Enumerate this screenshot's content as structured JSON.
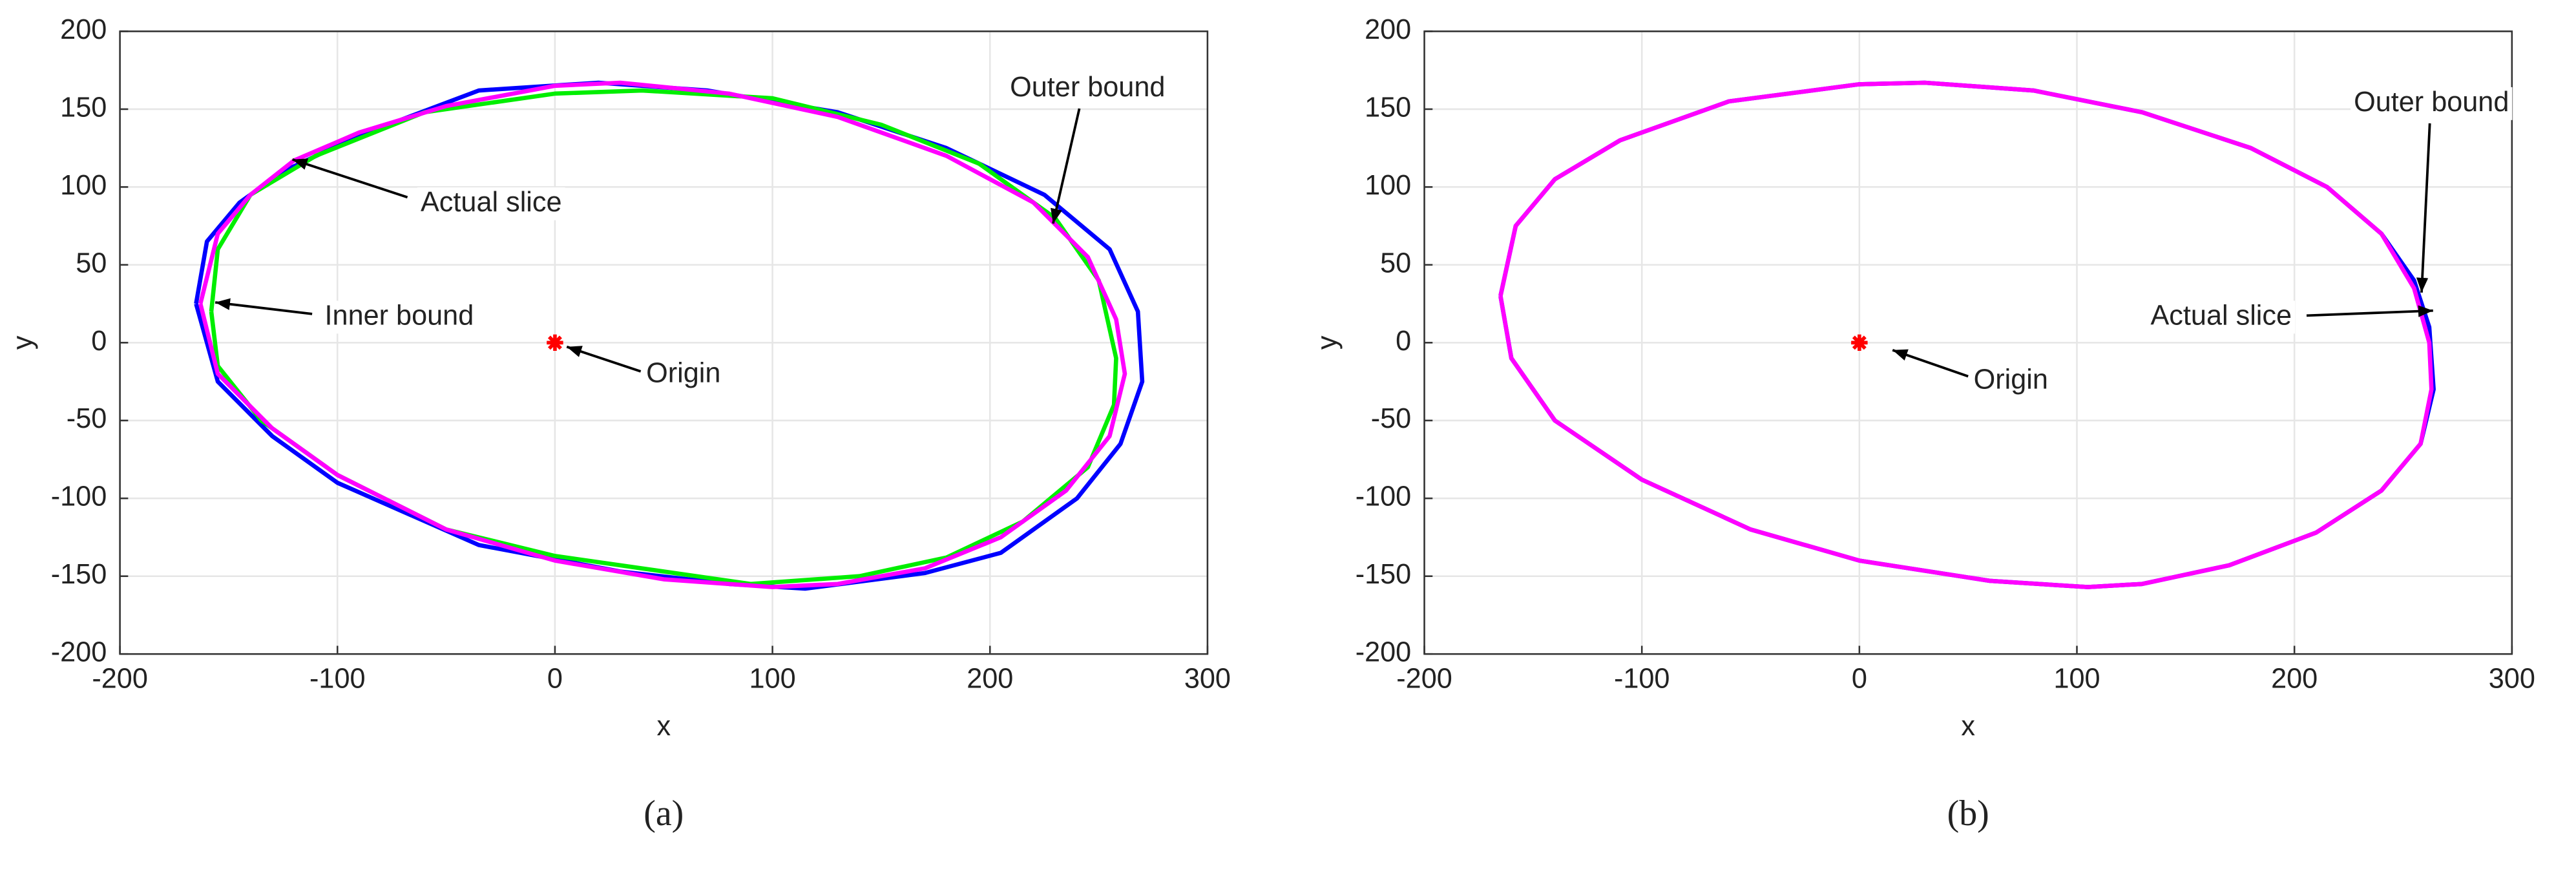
{
  "chart_data": [
    {
      "type": "line",
      "label": "(a)",
      "xlabel": "x",
      "ylabel": "y",
      "xlim": [
        -200,
        300
      ],
      "xticks": [
        -200,
        -100,
        0,
        100,
        200,
        300
      ],
      "ylim": [
        -200,
        200
      ],
      "yticks": [
        -200,
        -150,
        -100,
        -50,
        0,
        50,
        100,
        150,
        200
      ],
      "grid": true,
      "series": [
        {
          "name": "Outer bound",
          "color": "#0000ff",
          "x": [
            -165,
            -160,
            -145,
            -125,
            -90,
            -35,
            20,
            70,
            130,
            180,
            225,
            255,
            268,
            270,
            260,
            240,
            205,
            170,
            115,
            80,
            30,
            -35,
            -100,
            -130,
            -155,
            -165
          ],
          "y": [
            25,
            65,
            90,
            110,
            133,
            162,
            167,
            162,
            148,
            125,
            95,
            60,
            20,
            -25,
            -65,
            -100,
            -135,
            -148,
            -158,
            -155,
            -147,
            -130,
            -90,
            -60,
            -25,
            25
          ]
        },
        {
          "name": "Inner bound",
          "color": "#00ee00",
          "x": [
            -158,
            -155,
            -140,
            -110,
            -60,
            0,
            40,
            100,
            150,
            195,
            230,
            250,
            258,
            257,
            245,
            215,
            180,
            140,
            90,
            40,
            0,
            -50,
            -100,
            -135,
            -155,
            -158
          ],
          "y": [
            20,
            60,
            95,
            120,
            148,
            160,
            162,
            157,
            140,
            115,
            80,
            40,
            -10,
            -40,
            -80,
            -115,
            -138,
            -150,
            -155,
            -145,
            -137,
            -120,
            -85,
            -50,
            -15,
            20
          ]
        },
        {
          "name": "Actual slice",
          "color": "#ff00ff",
          "x": [
            -163,
            -155,
            -140,
            -120,
            -90,
            -50,
            0,
            30,
            80,
            130,
            180,
            220,
            245,
            258,
            262,
            255,
            235,
            205,
            170,
            130,
            100,
            50,
            0,
            -50,
            -100,
            -130,
            -155,
            -163
          ],
          "y": [
            25,
            70,
            95,
            117,
            135,
            152,
            165,
            167,
            160,
            145,
            120,
            90,
            55,
            15,
            -20,
            -60,
            -95,
            -125,
            -145,
            -155,
            -157,
            -152,
            -140,
            -120,
            -85,
            -55,
            -20,
            25
          ]
        },
        {
          "name": "Origin",
          "color": "#ff0000",
          "marker": "star",
          "x": [
            0
          ],
          "y": [
            0
          ]
        }
      ]
    },
    {
      "type": "line",
      "label": "(b)",
      "xlabel": "x",
      "ylabel": "y",
      "xlim": [
        -200,
        300
      ],
      "xticks": [
        -200,
        -100,
        0,
        100,
        200,
        300
      ],
      "ylim": [
        -200,
        200
      ],
      "yticks": [
        -200,
        -150,
        -100,
        -50,
        0,
        50,
        100,
        150,
        200
      ],
      "grid": true,
      "series": [
        {
          "name": "Outer bound",
          "color": "#0000ff",
          "x": [
            -165,
            -158,
            -140,
            -110,
            -60,
            0,
            30,
            80,
            130,
            180,
            215,
            240,
            255,
            262,
            264,
            258,
            240,
            210,
            170,
            130,
            105,
            60,
            0,
            -50,
            -100,
            -140,
            -160,
            -165
          ],
          "y": [
            30,
            75,
            105,
            130,
            155,
            166,
            167,
            162,
            148,
            125,
            100,
            70,
            40,
            10,
            -30,
            -65,
            -95,
            -122,
            -143,
            -155,
            -157,
            -153,
            -140,
            -120,
            -88,
            -50,
            -10,
            30
          ]
        },
        {
          "name": "Actual slice",
          "color": "#ff00ff",
          "x": [
            -165,
            -158,
            -140,
            -110,
            -60,
            0,
            30,
            80,
            130,
            180,
            215,
            240,
            255,
            262,
            263,
            258,
            240,
            210,
            170,
            130,
            105,
            60,
            0,
            -50,
            -100,
            -140,
            -160,
            -165
          ],
          "y": [
            30,
            75,
            105,
            130,
            155,
            166,
            167,
            162,
            148,
            125,
            100,
            70,
            35,
            0,
            -30,
            -65,
            -95,
            -122,
            -143,
            -155,
            -157,
            -153,
            -140,
            -120,
            -88,
            -50,
            -10,
            30
          ]
        },
        {
          "name": "Origin",
          "color": "#ff0000",
          "marker": "star",
          "x": [
            0
          ],
          "y": [
            0
          ]
        }
      ]
    }
  ]
}
